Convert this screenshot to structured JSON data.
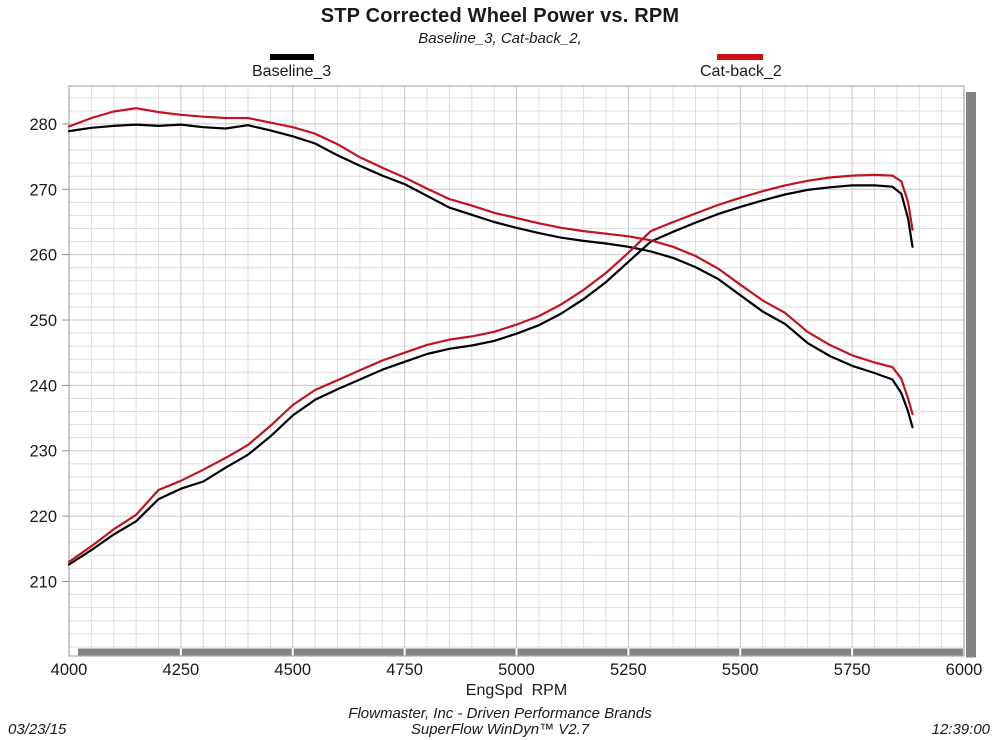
{
  "header": {
    "title": "STP Corrected Wheel Power vs. RPM",
    "subtitle": "Baseline_3, Cat-back_2,"
  },
  "legend": [
    {
      "label": "Baseline_3",
      "color": "#000000"
    },
    {
      "label": "Cat-back_2",
      "color": "#cd1016"
    }
  ],
  "footer": {
    "x_axis_label": "EngSpd  RPM",
    "company_line": "Flowmaster, Inc - Driven Performance Brands",
    "software_line": "SuperFlow WinDyn™ V2.7",
    "date": "03/23/15",
    "time": "12:39:00"
  },
  "chart_data": {
    "type": "line",
    "title": "STP Corrected Wheel Power vs. RPM",
    "subtitle": "Baseline_3, Cat-back_2,",
    "xlabel": "EngSpd RPM",
    "ylabel": "",
    "xlim": [
      4000,
      6000
    ],
    "ylim": [
      198.6,
      285.8
    ],
    "x_ticks": [
      4000,
      4250,
      4500,
      4750,
      5000,
      5250,
      5500,
      5750,
      6000
    ],
    "y_ticks": [
      210,
      220,
      230,
      240,
      250,
      260,
      270,
      280
    ],
    "x_minor_step": 50,
    "y_minor_step": 2,
    "grid": "on",
    "legend_position": "top",
    "colors": {
      "curve_black": "#000000",
      "curve_red": "#c11420",
      "grid_minor": "#dedede",
      "grid_major": "#c6c6c6",
      "frame": "#aaaaaa",
      "tick": "#8c8c8c",
      "scrollbar": "#838383",
      "text": "#1a1a1a"
    },
    "rpm": [
      4000,
      4050,
      4100,
      4150,
      4200,
      4250,
      4300,
      4350,
      4400,
      4450,
      4500,
      4550,
      4600,
      4650,
      4700,
      4750,
      4800,
      4850,
      4900,
      4950,
      5000,
      5050,
      5100,
      5150,
      5200,
      5250,
      5300,
      5350,
      5400,
      5450,
      5500,
      5550,
      5600,
      5650,
      5700,
      5750,
      5800,
      5840,
      5860,
      5875,
      5885
    ],
    "series": [
      {
        "name": "Baseline_3",
        "role": "torque_curve",
        "color": "#000000",
        "values": [
          278.9,
          279.4,
          279.7,
          279.9,
          279.7,
          279.9,
          279.5,
          279.3,
          279.8,
          279.0,
          278.1,
          277.0,
          275.2,
          273.6,
          272.1,
          270.8,
          269.0,
          267.2,
          266.1,
          265.0,
          264.1,
          263.3,
          262.6,
          262.1,
          261.7,
          261.2,
          260.5,
          259.5,
          258.1,
          256.3,
          253.8,
          251.3,
          249.4,
          246.5,
          244.5,
          243.0,
          241.9,
          240.9,
          238.8,
          236.0,
          233.6
        ]
      },
      {
        "name": "Baseline_3",
        "role": "power_curve",
        "color": "#000000",
        "values": [
          212.6,
          214.8,
          217.2,
          219.2,
          222.6,
          224.2,
          225.3,
          227.4,
          229.4,
          232.2,
          235.4,
          237.8,
          239.4,
          240.9,
          242.4,
          243.6,
          244.8,
          245.6,
          246.1,
          246.8,
          247.9,
          249.2,
          251.0,
          253.2,
          255.8,
          258.9,
          262.0,
          263.5,
          264.9,
          266.2,
          267.3,
          268.3,
          269.2,
          269.9,
          270.3,
          270.6,
          270.6,
          270.4,
          269.3,
          265.5,
          261.2
        ]
      },
      {
        "name": "Cat-back_2",
        "role": "torque_curve",
        "color": "#c11420",
        "values": [
          279.6,
          280.9,
          281.9,
          282.4,
          281.8,
          281.4,
          281.1,
          280.9,
          280.9,
          280.2,
          279.5,
          278.5,
          276.9,
          274.9,
          273.3,
          271.8,
          270.1,
          268.5,
          267.5,
          266.4,
          265.6,
          264.8,
          264.1,
          263.6,
          263.2,
          262.8,
          262.2,
          261.2,
          259.8,
          257.9,
          255.4,
          253.0,
          251.1,
          248.2,
          246.2,
          244.6,
          243.5,
          242.8,
          241.0,
          238.0,
          235.6
        ]
      },
      {
        "name": "Cat-back_2",
        "role": "power_curve",
        "color": "#c11420",
        "values": [
          213.0,
          215.4,
          218.0,
          220.2,
          224.0,
          225.4,
          227.1,
          228.9,
          230.9,
          233.8,
          237.0,
          239.3,
          240.8,
          242.3,
          243.8,
          245.0,
          246.2,
          247.0,
          247.5,
          248.2,
          249.3,
          250.6,
          252.4,
          254.6,
          257.2,
          260.3,
          263.6,
          265.0,
          266.3,
          267.6,
          268.7,
          269.7,
          270.6,
          271.3,
          271.8,
          272.1,
          272.2,
          272.1,
          271.2,
          268.0,
          263.8
        ]
      }
    ]
  }
}
